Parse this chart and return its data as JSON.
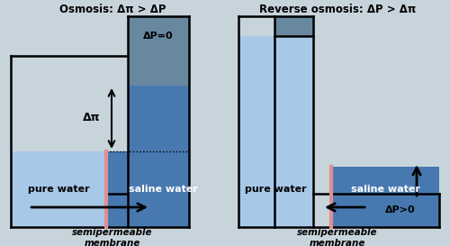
{
  "bg_color": "#c8d4dc",
  "pure_water_color": "#a8c8e8",
  "saline_color": "#4878b0",
  "container_bg": "#6888a0",
  "membrane_color": "#e09090",
  "wall_color": "#000000",
  "left_title": "Osmosis: Δπ > ΔP",
  "right_title": "Reverse osmosis: ΔP > Δπ",
  "label_pure": "pure water",
  "label_saline": "saline water",
  "bottom_label": "semipermeable\nmembrane",
  "left_dp_label": "ΔP=0",
  "right_dp_label": "ΔP>0",
  "dpi_label": "Δπ",
  "lw": 1.8,
  "mem_lw": 3.0
}
